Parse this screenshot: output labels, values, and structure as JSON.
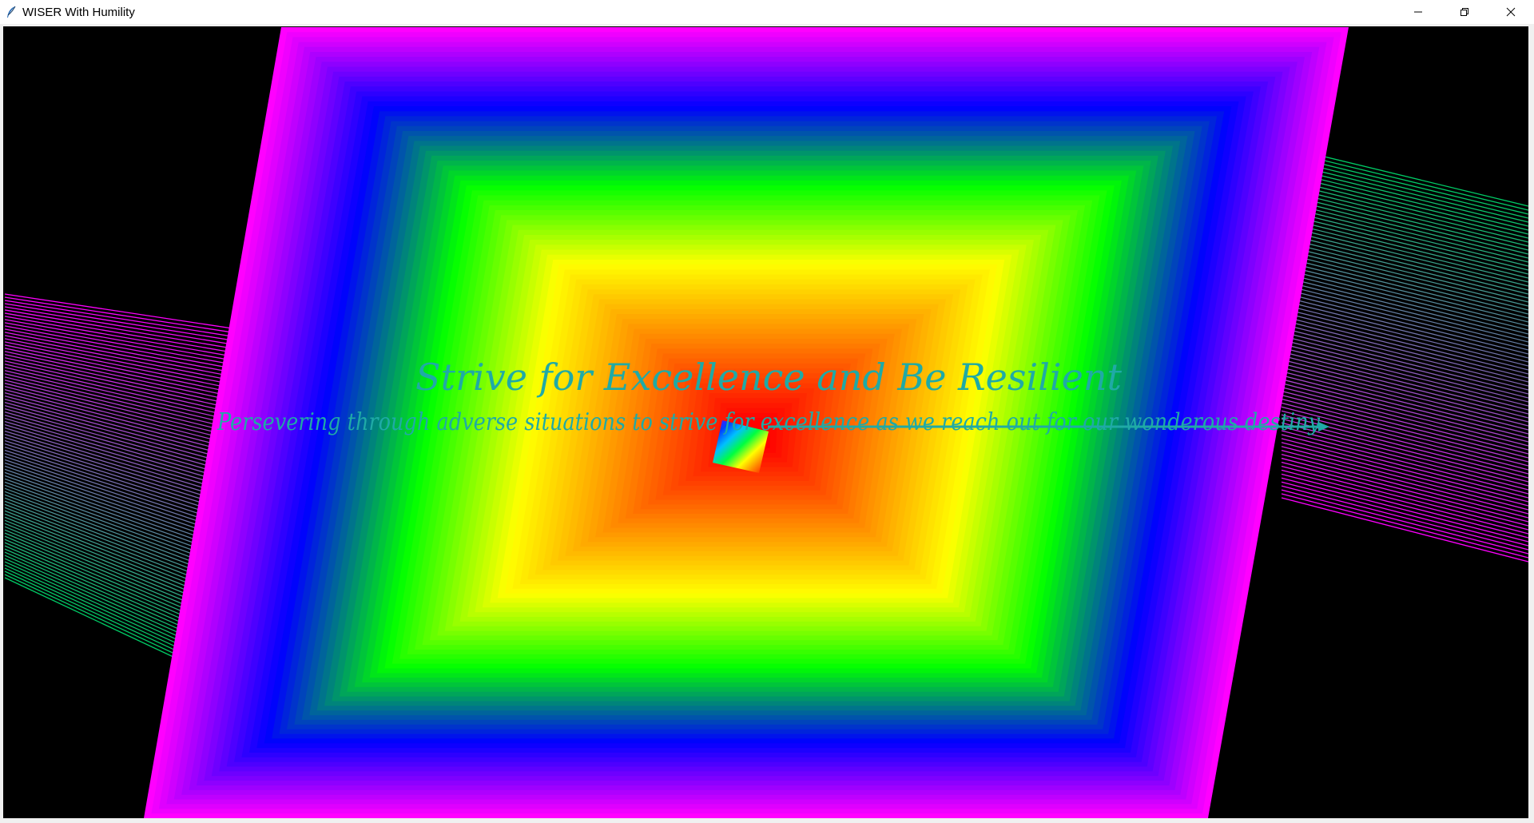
{
  "window": {
    "title": "WISER With Humility",
    "icon": "feather-icon",
    "controls": [
      "minimize-icon",
      "restore-icon",
      "close-icon"
    ]
  },
  "canvas": {
    "background": "#000000",
    "title": "Strive for Excellence and Be Resilient",
    "subtitle": "Persevering through adverse situations to strive for excellence as we reach out for our wonderous destiny",
    "text_color": "#1faaa6",
    "spectrum": [
      "#ff0000",
      "#ff8000",
      "#ffff00",
      "#00ff00",
      "#0000ff",
      "#ff00ff"
    ]
  }
}
